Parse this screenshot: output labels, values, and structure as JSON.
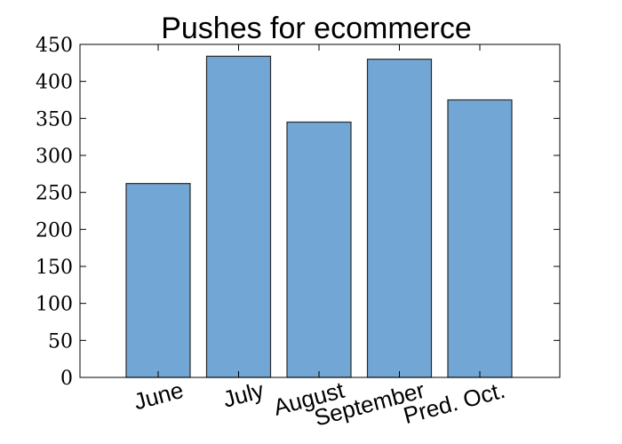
{
  "chart_data": {
    "type": "bar",
    "title": "Pushes for ecommerce",
    "xlabel": "",
    "ylabel": "",
    "categories": [
      "June",
      "July",
      "August",
      "September",
      "Pred. Oct."
    ],
    "values": [
      262,
      434,
      345,
      430,
      375
    ],
    "ylim": [
      0,
      450
    ],
    "yticks": [
      "0",
      "50",
      "100",
      "150",
      "200",
      "250",
      "300",
      "350",
      "400",
      "450"
    ],
    "bar_color": "#72a6d4",
    "bar_edge_color": "#2b2b2b",
    "grid": false,
    "legend": "none"
  }
}
